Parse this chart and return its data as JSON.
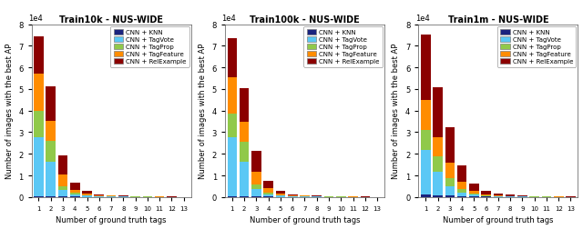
{
  "titles": [
    "Train10k - NUS-WIDE",
    "Train100k - NUS-WIDE",
    "Train1m - NUS-WIDE"
  ],
  "xlabel": "Number of ground truth tags",
  "ylabel": "Number of images with the best AP",
  "categories": [
    1,
    2,
    3,
    4,
    5,
    6,
    7,
    8,
    9,
    10,
    11,
    12,
    13
  ],
  "legend_labels": [
    "CNN + KNN",
    "CNN + TagVote",
    "CNN + TagProp",
    "CNN + TagFeature",
    "CNN + RelExample"
  ],
  "colors": [
    "#1a237e",
    "#5bc8f5",
    "#90c94a",
    "#ff8c00",
    "#8b0000"
  ],
  "ylim": [
    0,
    80000
  ],
  "data": {
    "Train10k": [
      [
        500,
        400,
        300,
        200,
        150,
        100,
        80,
        60,
        50,
        40,
        30,
        20,
        10
      ],
      [
        27000,
        16000,
        3000,
        1100,
        500,
        300,
        200,
        150,
        100,
        80,
        60,
        50,
        40
      ],
      [
        12500,
        9500,
        1500,
        600,
        250,
        150,
        100,
        80,
        60,
        50,
        40,
        30,
        20
      ],
      [
        17000,
        9500,
        5500,
        1400,
        600,
        300,
        200,
        120,
        80,
        60,
        50,
        40,
        30
      ],
      [
        17500,
        16000,
        9000,
        3200,
        1200,
        500,
        300,
        200,
        150,
        100,
        80,
        60,
        40
      ]
    ],
    "Train100k": [
      [
        500,
        400,
        300,
        200,
        150,
        100,
        80,
        60,
        50,
        40,
        30,
        20,
        10
      ],
      [
        27000,
        16000,
        3500,
        1200,
        500,
        300,
        200,
        150,
        100,
        80,
        60,
        50,
        40
      ],
      [
        11000,
        9000,
        2000,
        700,
        280,
        150,
        100,
        80,
        60,
        50,
        40,
        30,
        20
      ],
      [
        17000,
        9500,
        6000,
        2000,
        700,
        350,
        200,
        120,
        80,
        60,
        50,
        40,
        30
      ],
      [
        18000,
        15500,
        9500,
        3200,
        1200,
        500,
        300,
        200,
        150,
        100,
        80,
        60,
        40
      ]
    ],
    "Train1m": [
      [
        1000,
        800,
        600,
        400,
        300,
        200,
        150,
        100,
        80,
        60,
        50,
        40,
        30
      ],
      [
        21000,
        11000,
        4500,
        1800,
        700,
        350,
        200,
        150,
        100,
        80,
        60,
        50,
        40
      ],
      [
        9000,
        7000,
        3500,
        1500,
        600,
        300,
        150,
        100,
        80,
        60,
        50,
        40,
        30
      ],
      [
        14000,
        9000,
        7500,
        3500,
        1200,
        500,
        300,
        200,
        150,
        100,
        80,
        60,
        50
      ],
      [
        30000,
        23000,
        16000,
        7500,
        3500,
        1500,
        800,
        500,
        300,
        200,
        150,
        100,
        70
      ]
    ]
  },
  "figsize": [
    6.4,
    2.53
  ],
  "dpi": 100
}
